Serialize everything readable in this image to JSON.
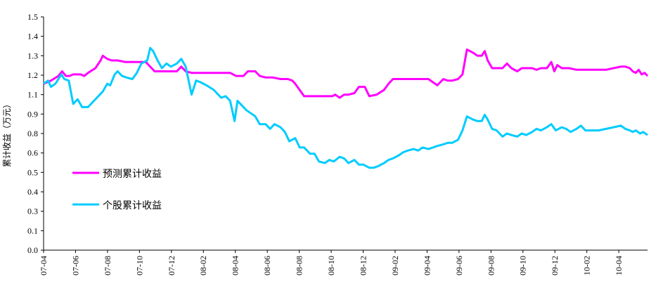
{
  "chart_data": {
    "type": "line",
    "title": "",
    "xlabel": "",
    "ylabel": "累计收益（万元）",
    "ylim": [
      0.0,
      1.5
    ],
    "yticks": [
      "0.0",
      "0.1",
      "0.3",
      "0.4",
      "0.5",
      "0.6",
      "0.8",
      "0.9",
      "1.1",
      "1.2",
      "1.3",
      "1.4",
      "1.5"
    ],
    "x_range": [
      "2007-04",
      "2010-05"
    ],
    "xticks": [
      "07-04",
      "07-06",
      "07-08",
      "07-10",
      "07-12",
      "08-02",
      "08-04",
      "08-06",
      "08-08",
      "08-10",
      "08-12",
      "09-02",
      "09-04",
      "09-06",
      "09-08",
      "09-10",
      "09-12",
      "10-02",
      "10-04"
    ],
    "grid": false,
    "legend_position": "lower-left",
    "series": [
      {
        "name": "预测累计收益",
        "color": "#ff00ff",
        "points": [
          [
            0.0,
            1.07
          ],
          [
            0.5,
            1.09
          ],
          [
            1.0,
            1.12
          ],
          [
            1.25,
            1.15
          ],
          [
            1.5,
            1.12
          ],
          [
            1.75,
            1.12
          ],
          [
            2.0,
            1.13
          ],
          [
            2.5,
            1.13
          ],
          [
            2.75,
            1.12
          ],
          [
            3.0,
            1.14
          ],
          [
            3.5,
            1.17
          ],
          [
            3.85,
            1.22
          ],
          [
            4.0,
            1.25
          ],
          [
            4.3,
            1.23
          ],
          [
            4.6,
            1.22
          ],
          [
            5.0,
            1.22
          ],
          [
            5.5,
            1.21
          ],
          [
            6.0,
            1.21
          ],
          [
            6.5,
            1.21
          ],
          [
            6.9,
            1.21
          ],
          [
            7.1,
            1.19
          ],
          [
            7.5,
            1.15
          ],
          [
            8.0,
            1.15
          ],
          [
            8.5,
            1.15
          ],
          [
            9.0,
            1.15
          ],
          [
            9.3,
            1.18
          ],
          [
            9.6,
            1.15
          ],
          [
            10.0,
            1.14
          ],
          [
            11.0,
            1.14
          ],
          [
            12.0,
            1.14
          ],
          [
            12.6,
            1.14
          ],
          [
            13.0,
            1.12
          ],
          [
            13.5,
            1.12
          ],
          [
            13.8,
            1.15
          ],
          [
            14.3,
            1.15
          ],
          [
            14.6,
            1.12
          ],
          [
            15.0,
            1.11
          ],
          [
            15.5,
            1.11
          ],
          [
            16.0,
            1.1
          ],
          [
            16.5,
            1.1
          ],
          [
            16.8,
            1.09
          ],
          [
            17.0,
            1.07
          ],
          [
            17.3,
            1.03
          ],
          [
            17.6,
            0.99
          ],
          [
            18.0,
            0.99
          ],
          [
            19.0,
            0.99
          ],
          [
            19.5,
            0.99
          ],
          [
            19.7,
            1.0
          ],
          [
            20.0,
            0.98
          ],
          [
            20.3,
            1.0
          ],
          [
            20.6,
            1.0
          ],
          [
            21.0,
            1.01
          ],
          [
            21.3,
            1.05
          ],
          [
            21.7,
            1.05
          ],
          [
            22.0,
            0.99
          ],
          [
            22.5,
            1.0
          ],
          [
            23.0,
            1.03
          ],
          [
            23.3,
            1.07
          ],
          [
            23.6,
            1.1
          ],
          [
            24.0,
            1.1
          ],
          [
            24.5,
            1.1
          ],
          [
            25.0,
            1.1
          ],
          [
            25.5,
            1.1
          ],
          [
            26.0,
            1.1
          ],
          [
            26.3,
            1.08
          ],
          [
            26.6,
            1.06
          ],
          [
            27.0,
            1.1
          ],
          [
            27.3,
            1.09
          ],
          [
            27.6,
            1.09
          ],
          [
            28.0,
            1.1
          ],
          [
            28.3,
            1.13
          ],
          [
            28.6,
            1.29
          ],
          [
            29.0,
            1.27
          ],
          [
            29.3,
            1.25
          ],
          [
            29.6,
            1.25
          ],
          [
            29.8,
            1.28
          ],
          [
            30.0,
            1.22
          ],
          [
            30.3,
            1.17
          ],
          [
            30.6,
            1.17
          ],
          [
            31.0,
            1.17
          ],
          [
            31.3,
            1.2
          ],
          [
            31.6,
            1.17
          ],
          [
            32.0,
            1.15
          ],
          [
            32.3,
            1.17
          ],
          [
            32.6,
            1.17
          ],
          [
            33.0,
            1.17
          ],
          [
            33.3,
            1.16
          ],
          [
            33.6,
            1.17
          ],
          [
            34.0,
            1.17
          ],
          [
            34.3,
            1.21
          ],
          [
            34.5,
            1.15
          ],
          [
            34.7,
            1.19
          ],
          [
            35.0,
            1.17
          ],
          [
            35.5,
            1.17
          ],
          [
            36.0,
            1.16
          ],
          [
            36.5,
            1.16
          ],
          [
            37.0,
            1.16
          ],
          [
            37.5,
            1.16
          ],
          [
            38.0,
            1.16
          ],
          [
            38.5,
            1.17
          ],
          [
            39.0,
            1.18
          ],
          [
            39.3,
            1.18
          ],
          [
            39.6,
            1.17
          ],
          [
            39.8,
            1.15
          ],
          [
            40.0,
            1.14
          ],
          [
            40.2,
            1.16
          ],
          [
            40.4,
            1.13
          ],
          [
            40.6,
            1.14
          ],
          [
            40.8,
            1.12
          ]
        ]
      },
      {
        "name": "个股累计收益",
        "color": "#00ccff",
        "points": [
          [
            0.0,
            1.07
          ],
          [
            0.3,
            1.09
          ],
          [
            0.5,
            1.05
          ],
          [
            0.8,
            1.07
          ],
          [
            1.0,
            1.1
          ],
          [
            1.2,
            1.13
          ],
          [
            1.4,
            1.1
          ],
          [
            1.7,
            1.09
          ],
          [
            2.0,
            0.94
          ],
          [
            2.3,
            0.97
          ],
          [
            2.6,
            0.92
          ],
          [
            3.0,
            0.92
          ],
          [
            3.3,
            0.95
          ],
          [
            3.6,
            0.98
          ],
          [
            4.0,
            1.02
          ],
          [
            4.3,
            1.07
          ],
          [
            4.5,
            1.06
          ],
          [
            4.8,
            1.13
          ],
          [
            5.0,
            1.15
          ],
          [
            5.3,
            1.12
          ],
          [
            5.6,
            1.11
          ],
          [
            6.0,
            1.1
          ],
          [
            6.3,
            1.14
          ],
          [
            6.6,
            1.2
          ],
          [
            7.0,
            1.22
          ],
          [
            7.2,
            1.3
          ],
          [
            7.4,
            1.28
          ],
          [
            7.7,
            1.22
          ],
          [
            8.0,
            1.17
          ],
          [
            8.3,
            1.2
          ],
          [
            8.6,
            1.18
          ],
          [
            9.0,
            1.2
          ],
          [
            9.3,
            1.23
          ],
          [
            9.6,
            1.18
          ],
          [
            10.0,
            1.0
          ],
          [
            10.3,
            1.09
          ],
          [
            10.6,
            1.08
          ],
          [
            11.0,
            1.06
          ],
          [
            11.5,
            1.03
          ],
          [
            12.0,
            0.98
          ],
          [
            12.3,
            0.99
          ],
          [
            12.6,
            0.96
          ],
          [
            12.9,
            0.83
          ],
          [
            13.1,
            0.96
          ],
          [
            13.4,
            0.93
          ],
          [
            13.7,
            0.9
          ],
          [
            14.0,
            0.88
          ],
          [
            14.3,
            0.86
          ],
          [
            14.6,
            0.81
          ],
          [
            15.0,
            0.81
          ],
          [
            15.3,
            0.78
          ],
          [
            15.6,
            0.81
          ],
          [
            16.0,
            0.79
          ],
          [
            16.3,
            0.76
          ],
          [
            16.6,
            0.7
          ],
          [
            17.0,
            0.72
          ],
          [
            17.3,
            0.66
          ],
          [
            17.6,
            0.66
          ],
          [
            18.0,
            0.62
          ],
          [
            18.3,
            0.62
          ],
          [
            18.6,
            0.57
          ],
          [
            19.0,
            0.56
          ],
          [
            19.3,
            0.58
          ],
          [
            19.6,
            0.57
          ],
          [
            20.0,
            0.6
          ],
          [
            20.3,
            0.59
          ],
          [
            20.6,
            0.56
          ],
          [
            21.0,
            0.58
          ],
          [
            21.3,
            0.55
          ],
          [
            21.6,
            0.55
          ],
          [
            22.0,
            0.53
          ],
          [
            22.3,
            0.53
          ],
          [
            22.6,
            0.54
          ],
          [
            23.0,
            0.56
          ],
          [
            23.3,
            0.58
          ],
          [
            23.6,
            0.59
          ],
          [
            24.0,
            0.61
          ],
          [
            24.3,
            0.63
          ],
          [
            24.6,
            0.64
          ],
          [
            25.0,
            0.65
          ],
          [
            25.3,
            0.64
          ],
          [
            25.6,
            0.66
          ],
          [
            26.0,
            0.65
          ],
          [
            26.3,
            0.66
          ],
          [
            26.6,
            0.67
          ],
          [
            27.0,
            0.68
          ],
          [
            27.3,
            0.69
          ],
          [
            27.6,
            0.69
          ],
          [
            28.0,
            0.71
          ],
          [
            28.3,
            0.77
          ],
          [
            28.6,
            0.86
          ],
          [
            29.0,
            0.84
          ],
          [
            29.3,
            0.83
          ],
          [
            29.6,
            0.83
          ],
          [
            29.8,
            0.87
          ],
          [
            30.0,
            0.84
          ],
          [
            30.3,
            0.78
          ],
          [
            30.6,
            0.77
          ],
          [
            31.0,
            0.73
          ],
          [
            31.3,
            0.75
          ],
          [
            31.6,
            0.74
          ],
          [
            32.0,
            0.73
          ],
          [
            32.3,
            0.75
          ],
          [
            32.6,
            0.74
          ],
          [
            33.0,
            0.76
          ],
          [
            33.3,
            0.78
          ],
          [
            33.6,
            0.77
          ],
          [
            34.0,
            0.79
          ],
          [
            34.3,
            0.81
          ],
          [
            34.6,
            0.77
          ],
          [
            35.0,
            0.79
          ],
          [
            35.3,
            0.78
          ],
          [
            35.6,
            0.76
          ],
          [
            36.0,
            0.78
          ],
          [
            36.3,
            0.8
          ],
          [
            36.6,
            0.77
          ],
          [
            37.0,
            0.77
          ],
          [
            37.5,
            0.77
          ],
          [
            38.0,
            0.78
          ],
          [
            38.5,
            0.79
          ],
          [
            39.0,
            0.8
          ],
          [
            39.3,
            0.78
          ],
          [
            39.6,
            0.77
          ],
          [
            39.8,
            0.76
          ],
          [
            40.0,
            0.77
          ],
          [
            40.3,
            0.75
          ],
          [
            40.5,
            0.76
          ],
          [
            40.8,
            0.74
          ]
        ]
      }
    ]
  }
}
